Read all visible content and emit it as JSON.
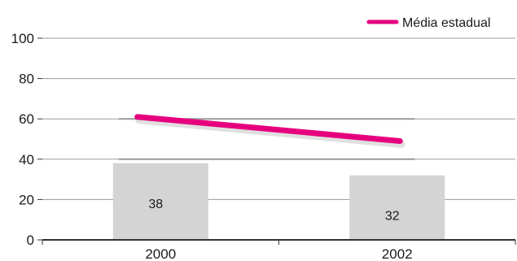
{
  "chart_data": {
    "type": "bar",
    "categories": [
      "2000",
      "2002"
    ],
    "series": [
      {
        "values": [
          38,
          32
        ],
        "color": "#d4d4d4",
        "data_labels": [
          "38",
          "32"
        ]
      }
    ],
    "line_series": [
      {
        "name": "Média estadual",
        "values": [
          61,
          49
        ],
        "color": "#e6007e"
      }
    ],
    "ylim": [
      0,
      100
    ],
    "y_ticks": [
      "0",
      "20",
      "40",
      "60",
      "80",
      "100"
    ],
    "reference_lines": [
      40,
      60
    ],
    "grid": true,
    "legend": {
      "position": "top-right"
    },
    "xlabel": "",
    "ylabel": ""
  }
}
